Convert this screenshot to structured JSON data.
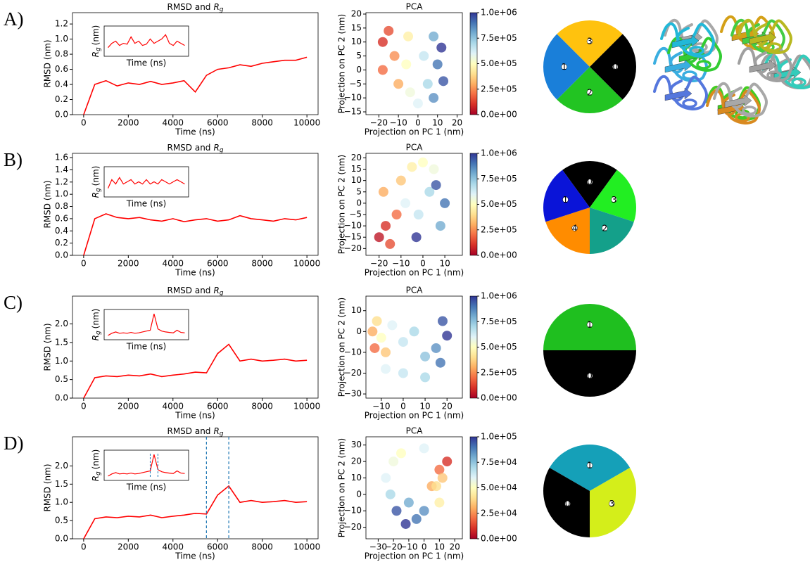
{
  "chart_data": [
    {
      "type": "line",
      "label": "A)",
      "title": "RMSD and",
      "title_symbol": "R",
      "title_subscript": "g",
      "xlabel": "Time (ns)",
      "ylabel": "RMSD (nm)",
      "color": "#ff0000",
      "x": [
        0,
        500,
        1000,
        1500,
        2000,
        2500,
        3000,
        3500,
        4000,
        4500,
        5000,
        5500,
        6000,
        6500,
        7000,
        7500,
        8000,
        8500,
        9000,
        9500,
        10000
      ],
      "values": [
        0,
        0.4,
        0.45,
        0.38,
        0.42,
        0.4,
        0.44,
        0.4,
        0.42,
        0.45,
        0.3,
        0.52,
        0.6,
        0.62,
        0.66,
        0.64,
        0.68,
        0.7,
        0.72,
        0.72,
        0.76
      ],
      "xlim": [
        -500,
        10500
      ],
      "xticks": [
        0,
        2000,
        4000,
        6000,
        8000,
        10000
      ],
      "ylim": [
        0,
        1.35
      ],
      "yticks": [
        {
          "value": 0,
          "label": "0.0"
        },
        {
          "value": 0.2,
          "label": "0.2"
        },
        {
          "value": 0.4,
          "label": "0.4"
        },
        {
          "value": 0.6,
          "label": "0.6"
        },
        {
          "value": 0.8,
          "label": "0.8"
        },
        {
          "value": 1.0,
          "label": "1.0"
        },
        {
          "value": 1.2,
          "label": "1.2"
        }
      ],
      "inset": {
        "xlabel": "Time (ns)",
        "ylabel_symbol": "R",
        "ylabel_subscript": "g",
        "ylabel": "(nm)",
        "ylim": [
          0.9,
          1.6
        ],
        "values": [
          1.1,
          1.2,
          1.25,
          1.15,
          1.2,
          1.18,
          1.35,
          1.2,
          1.25,
          1.15,
          1.18,
          1.3,
          1.2,
          1.25,
          1.3,
          1.4,
          1.2,
          1.15,
          1.25,
          1.2,
          1.15
        ]
      }
    },
    {
      "type": "scatter",
      "title": "PCA",
      "xlabel": "Projection on PC 1 (nm)",
      "ylabel": "Projection on PC 2 (nm)",
      "colormap": "RdYlBu",
      "xlim": [
        -26.6,
        22.7
      ],
      "xticks": [
        {
          "value": -20,
          "label": "−20"
        },
        {
          "value": -10,
          "label": "−10"
        },
        0,
        10,
        20
      ],
      "ylim": [
        -16,
        20.5
      ],
      "yticks": [
        {
          "value": -15,
          "label": "−15"
        },
        {
          "value": -10,
          "label": "−10"
        },
        {
          "value": -5,
          "label": "−5"
        },
        0,
        5,
        10,
        15,
        20
      ],
      "x": [
        -18,
        -15,
        -12,
        -18,
        -10,
        -5,
        -6,
        -4,
        0,
        3,
        5,
        8,
        10,
        13,
        8,
        12
      ],
      "y": [
        10,
        14,
        5,
        0,
        -5,
        12,
        2,
        -8,
        -12,
        5,
        -5,
        12,
        2,
        -4,
        -10,
        8
      ],
      "values": [
        100000,
        150000,
        250000,
        200000,
        300000,
        450000,
        500000,
        550000,
        600000,
        650000,
        700000,
        800000,
        900000,
        950000,
        850000,
        1000000
      ],
      "clim": [
        0,
        1000000
      ],
      "cticks": [
        {
          "value": 0,
          "label": "0.0e+00"
        },
        {
          "value": 250000,
          "label": "2.5e+05"
        },
        {
          "value": 500000,
          "label": "5.0e+05"
        },
        {
          "value": 750000,
          "label": "7.5e+05"
        },
        {
          "value": 1000000,
          "label": "1.0e+06"
        }
      ]
    },
    {
      "type": "cluster",
      "clusters": [
        {
          "label": "3",
          "color": "#ffc20e",
          "structure_color": "#d4a017"
        },
        {
          "label": "0",
          "color": "#000000",
          "structure_color": "#a0a0a0"
        },
        {
          "label": "2",
          "color": "#22c422",
          "structure_color": "#44cc22"
        },
        {
          "label": "1",
          "color": "#1a7fd9",
          "structure_color": "#3aaee0"
        }
      ]
    },
    {
      "type": "line",
      "label": "B)",
      "title": "RMSD and",
      "title_symbol": "R",
      "title_subscript": "g",
      "xlabel": "Time (ns)",
      "ylabel": "RMSD (nm)",
      "color": "#ff0000",
      "x": [
        0,
        500,
        1000,
        1500,
        2000,
        2500,
        3000,
        3500,
        4000,
        4500,
        5000,
        5500,
        6000,
        6500,
        7000,
        7500,
        8000,
        8500,
        9000,
        9500,
        10000
      ],
      "values": [
        0,
        0.6,
        0.68,
        0.62,
        0.6,
        0.62,
        0.58,
        0.56,
        0.6,
        0.55,
        0.58,
        0.6,
        0.56,
        0.58,
        0.65,
        0.6,
        0.58,
        0.56,
        0.6,
        0.58,
        0.62
      ],
      "xlim": [
        -500,
        10500
      ],
      "xticks": [
        0,
        2000,
        4000,
        6000,
        8000,
        10000
      ],
      "ylim": [
        0,
        1.67
      ],
      "yticks": [
        {
          "value": 0,
          "label": "0.0"
        },
        {
          "value": 0.2,
          "label": "0.2"
        },
        {
          "value": 0.4,
          "label": "0.4"
        },
        {
          "value": 0.6,
          "label": "0.6"
        },
        {
          "value": 0.8,
          "label": "0.8"
        },
        {
          "value": 1.0,
          "label": "1.0"
        },
        {
          "value": 1.2,
          "label": "1.2"
        },
        {
          "value": 1.4,
          "label": "1.4"
        },
        {
          "value": 1.6,
          "label": "1.6"
        }
      ],
      "inset": {
        "xlabel": "Time (ns)",
        "ylabel_symbol": "R",
        "ylabel_subscript": "g",
        "ylabel": "(nm)",
        "ylim": [
          0.9,
          1.6
        ],
        "values": [
          1.1,
          1.3,
          1.2,
          1.35,
          1.2,
          1.25,
          1.3,
          1.2,
          1.25,
          1.2,
          1.3,
          1.2,
          1.25,
          1.2,
          1.3,
          1.25,
          1.2,
          1.25,
          1.3,
          1.25,
          1.2
        ]
      }
    },
    {
      "type": "scatter",
      "title": "PCA",
      "xlabel": "Projection on PC 1 (nm)",
      "ylabel": "Projection on PC 2 (nm)",
      "colormap": "RdYlBu",
      "xlim": [
        -26,
        18
      ],
      "xticks": [
        {
          "value": -20,
          "label": "−20"
        },
        {
          "value": -10,
          "label": "−10"
        },
        0,
        10
      ],
      "ylim": [
        -23,
        22
      ],
      "yticks": [
        {
          "value": -20,
          "label": "−20"
        },
        {
          "value": -15,
          "label": "−15"
        },
        {
          "value": -10,
          "label": "−10"
        },
        {
          "value": -5,
          "label": "−5"
        },
        0,
        5,
        10,
        15,
        20
      ],
      "x": [
        -20,
        -17,
        -15,
        -12,
        -18,
        -10,
        -5,
        0,
        5,
        -8,
        -2,
        3,
        8,
        10,
        6,
        -3
      ],
      "y": [
        -15,
        -10,
        -18,
        -5,
        5,
        10,
        16,
        18,
        15,
        0,
        -5,
        5,
        -10,
        0,
        8,
        -15
      ],
      "values": [
        50000,
        100000,
        150000,
        200000,
        300000,
        350000,
        450000,
        500000,
        550000,
        600000,
        650000,
        700000,
        800000,
        900000,
        950000,
        1000000
      ],
      "clim": [
        0,
        1000000
      ],
      "cticks": [
        {
          "value": 0,
          "label": "0.0e+00"
        },
        {
          "value": 250000,
          "label": "2.5e+05"
        },
        {
          "value": 500000,
          "label": "5.0e+05"
        },
        {
          "value": 750000,
          "label": "7.5e+05"
        },
        {
          "value": 1000000,
          "label": "1.0e+06"
        }
      ]
    },
    {
      "type": "cluster",
      "clusters": [
        {
          "label": "0",
          "color": "#000000",
          "structure_color": "#a8a8a8"
        },
        {
          "label": "3",
          "color": "#22ee22",
          "structure_color": "#44cc44"
        },
        {
          "label": "2",
          "color": "#14a08a",
          "structure_color": "#33ccbb"
        },
        {
          "label": "4",
          "color": "#ff8c00",
          "structure_color": "#d98a20"
        },
        {
          "label": "1",
          "color": "#0a14d8",
          "structure_color": "#5577dd"
        }
      ]
    },
    {
      "type": "line",
      "label": "C)",
      "title": "RMSD and",
      "title_symbol": "R",
      "title_subscript": "g",
      "xlabel": "Time (ns)",
      "ylabel": "RMSD (nm)",
      "color": "#ff0000",
      "x": [
        0,
        500,
        1000,
        1500,
        2000,
        2500,
        3000,
        3500,
        4000,
        4500,
        5000,
        5500,
        6000,
        6500,
        7000,
        7500,
        8000,
        8500,
        9000,
        9500,
        10000
      ],
      "values": [
        0,
        0.55,
        0.6,
        0.58,
        0.62,
        0.6,
        0.65,
        0.58,
        0.62,
        0.65,
        0.7,
        0.68,
        1.2,
        1.45,
        1.0,
        1.05,
        1.0,
        1.02,
        1.05,
        1.0,
        1.02
      ],
      "xlim": [
        -500,
        10500
      ],
      "xticks": [
        0,
        2000,
        4000,
        6000,
        8000,
        10000
      ],
      "ylim": [
        0,
        2.75
      ],
      "yticks": [
        {
          "value": 0,
          "label": "0.0"
        },
        {
          "value": 0.5,
          "label": "0.5"
        },
        {
          "value": 1.0,
          "label": "1.0"
        },
        {
          "value": 1.5,
          "label": "1.5"
        },
        {
          "value": 2.0,
          "label": "2.0"
        }
      ],
      "inset": {
        "xlabel": "Time (ns)",
        "ylabel_symbol": "R",
        "ylabel_subscript": "g",
        "ylabel": "(nm)",
        "ylim": [
          0.9,
          1.6
        ],
        "values": [
          1.0,
          1.05,
          1.08,
          1.05,
          1.06,
          1.05,
          1.07,
          1.05,
          1.06,
          1.08,
          1.1,
          1.12,
          1.5,
          1.15,
          1.1,
          1.08,
          1.07,
          1.06,
          1.12,
          1.07,
          1.06
        ]
      }
    },
    {
      "type": "scatter",
      "title": "PCA",
      "xlabel": "Projection on PC 1 (nm)",
      "ylabel": "Projection on PC 2 (nm)",
      "colormap": "RdYlBu",
      "xlim": [
        -17,
        27
      ],
      "xticks": [
        {
          "value": -10,
          "label": "−10"
        },
        0,
        10,
        20
      ],
      "ylim": [
        -32,
        17
      ],
      "yticks": [
        {
          "value": -30,
          "label": "−30"
        },
        {
          "value": -20,
          "label": "−20"
        },
        {
          "value": -10,
          "label": "−10"
        },
        0,
        10
      ],
      "x": [
        -14,
        -12,
        -10,
        -13,
        -8,
        -5,
        0,
        5,
        10,
        15,
        18,
        20,
        17,
        10,
        0,
        -8
      ],
      "y": [
        0,
        5,
        -3,
        -8,
        -10,
        3,
        -5,
        0,
        -12,
        -8,
        5,
        -2,
        -15,
        -22,
        -20,
        -18
      ],
      "values": [
        300000,
        400000,
        500000,
        200000,
        350000,
        600000,
        650000,
        700000,
        750000,
        850000,
        950000,
        1000000,
        900000,
        700000,
        650000,
        600000
      ],
      "clim": [
        0,
        1000000
      ],
      "cticks": [
        {
          "value": 0,
          "label": "0.0e+00"
        },
        {
          "value": 250000,
          "label": "2.5e+05"
        },
        {
          "value": 500000,
          "label": "5.0e+05"
        },
        {
          "value": 750000,
          "label": "7.5e+05"
        },
        {
          "value": 1000000,
          "label": "1.0e+06"
        }
      ]
    },
    {
      "type": "cluster",
      "clusters": [
        {
          "label": "1",
          "color": "#1fbf1f",
          "structure_color": "#33cc33"
        },
        {
          "label": "0",
          "color": "#000000",
          "structure_color": "#a0a0a0"
        }
      ]
    },
    {
      "type": "line",
      "label": "D)",
      "title": "RMSD and",
      "title_symbol": "R",
      "title_subscript": "g",
      "xlabel": "Time (ns)",
      "ylabel": "RMSD (nm)",
      "color": "#ff0000",
      "x": [
        0,
        500,
        1000,
        1500,
        2000,
        2500,
        3000,
        3500,
        4000,
        4500,
        5000,
        5500,
        6000,
        6500,
        7000,
        7500,
        8000,
        8500,
        9000,
        9500,
        10000
      ],
      "values": [
        0,
        0.55,
        0.6,
        0.58,
        0.62,
        0.6,
        0.65,
        0.58,
        0.62,
        0.65,
        0.7,
        0.68,
        1.2,
        1.45,
        1.0,
        1.05,
        1.0,
        1.02,
        1.05,
        1.0,
        1.02
      ],
      "xlim": [
        -500,
        10500
      ],
      "xticks": [
        0,
        2000,
        4000,
        6000,
        8000,
        10000
      ],
      "ylim": [
        0,
        2.8
      ],
      "yticks": [
        {
          "value": 0,
          "label": "0.0"
        },
        {
          "value": 0.5,
          "label": "0.5"
        },
        {
          "value": 1.0,
          "label": "1.0"
        },
        {
          "value": 1.5,
          "label": "1.5"
        },
        {
          "value": 2.0,
          "label": "2.0"
        }
      ],
      "vlines": [
        5500,
        6500
      ],
      "vline_color": "#1f77b4",
      "inset": {
        "xlabel": "Time (ns)",
        "ylabel_symbol": "R",
        "ylabel_subscript": "g",
        "ylabel": "(nm)",
        "ylim": [
          0.9,
          1.6
        ],
        "values": [
          1.0,
          1.05,
          1.08,
          1.05,
          1.06,
          1.05,
          1.07,
          1.05,
          1.06,
          1.08,
          1.1,
          1.12,
          1.5,
          1.15,
          1.1,
          1.08,
          1.07,
          1.06,
          1.12,
          1.07,
          1.06
        ]
      }
    },
    {
      "type": "scatter",
      "title": "PCA",
      "xlabel": "Projection on PC 1 (nm)",
      "ylabel": "Projection on PC 2 (nm)",
      "colormap": "RdYlBu",
      "xlim": [
        -38,
        25
      ],
      "xticks": [
        {
          "value": -30,
          "label": "−30"
        },
        {
          "value": -20,
          "label": "−20"
        },
        {
          "value": -10,
          "label": "−10"
        },
        0,
        10,
        20
      ],
      "ylim": [
        -27,
        35
      ],
      "yticks": [
        {
          "value": -20,
          "label": "−20"
        },
        {
          "value": -10,
          "label": "−10"
        },
        0,
        10,
        20,
        30
      ],
      "x": [
        -25,
        -20,
        -15,
        -10,
        -5,
        0,
        5,
        10,
        15,
        12,
        8,
        -18,
        -12,
        -22,
        0,
        10
      ],
      "y": [
        10,
        20,
        25,
        -5,
        -15,
        -10,
        5,
        15,
        20,
        10,
        5,
        -10,
        -18,
        0,
        28,
        -5
      ],
      "values": [
        60000,
        55000,
        50000,
        80000,
        90000,
        85000,
        30000,
        20000,
        10000,
        35000,
        40000,
        95000,
        100000,
        70000,
        60000,
        45000
      ],
      "clim": [
        0,
        100000
      ],
      "cticks": [
        {
          "value": 0,
          "label": "0.0e+00"
        },
        {
          "value": 25000,
          "label": "2.5e+04"
        },
        {
          "value": 50000,
          "label": "5.0e+04"
        },
        {
          "value": 75000,
          "label": "7.5e+04"
        },
        {
          "value": 100000,
          "label": "1.0e+05"
        }
      ]
    },
    {
      "type": "cluster",
      "clusters": [
        {
          "label": "1",
          "color": "#15a0b8",
          "structure_color": "#22b8d8"
        },
        {
          "label": "3",
          "color": "#d4ee1a",
          "structure_color": "#b8b820"
        },
        {
          "label": "0",
          "color": "#000000",
          "structure_color": "#a8a8a8"
        }
      ]
    }
  ]
}
